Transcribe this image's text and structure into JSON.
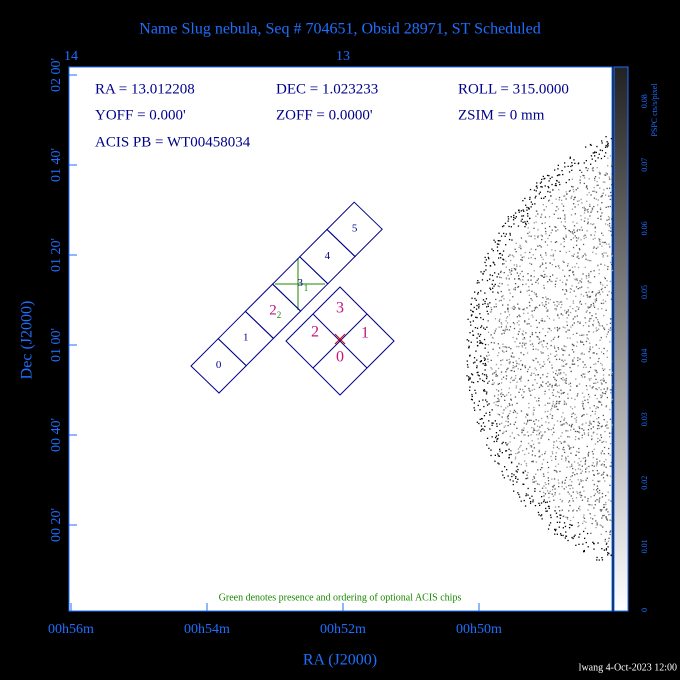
{
  "title": "Name Slug nebula, Seq # 704651, Obsid 28971, ST Scheduled",
  "info": [
    "RA = 13.012208",
    "DEC = 1.023233",
    "ROLL = 315.0000",
    "YOFF =    0.000'",
    "ZOFF =   0.0000'",
    "ZSIM = 0 mm",
    "ACIS PB = WT00458034"
  ],
  "x_axis": {
    "label": "RA (J2000)",
    "ticks": [
      "00h56m",
      "00h54m",
      "00h52m",
      "00h50m"
    ]
  },
  "top_axis": {
    "ticks": [
      "14",
      "13"
    ]
  },
  "y_axis": {
    "label": "Dec (J2000)",
    "ticks": [
      "02 00'",
      "01 40'",
      "01 20'",
      "01 00'",
      "00 40'",
      "00 20'"
    ]
  },
  "colorbar": {
    "label": "PSPC cts/s/pixel",
    "ticks": [
      "0",
      "0.01",
      "0.02",
      "0.03",
      "0.04",
      "0.05",
      "0.06",
      "0.07",
      "0.08"
    ]
  },
  "acis_s_chips": [
    "0",
    "1",
    "2",
    "3",
    "4",
    "5"
  ],
  "acis_i_chips": [
    "3",
    "1",
    "0",
    "2"
  ],
  "optional_chips": [
    "2",
    "1"
  ],
  "note": "Green denotes presence and ordering of optional ACIS chips",
  "footer": "lwang  4-Oct-2023 12:00"
}
